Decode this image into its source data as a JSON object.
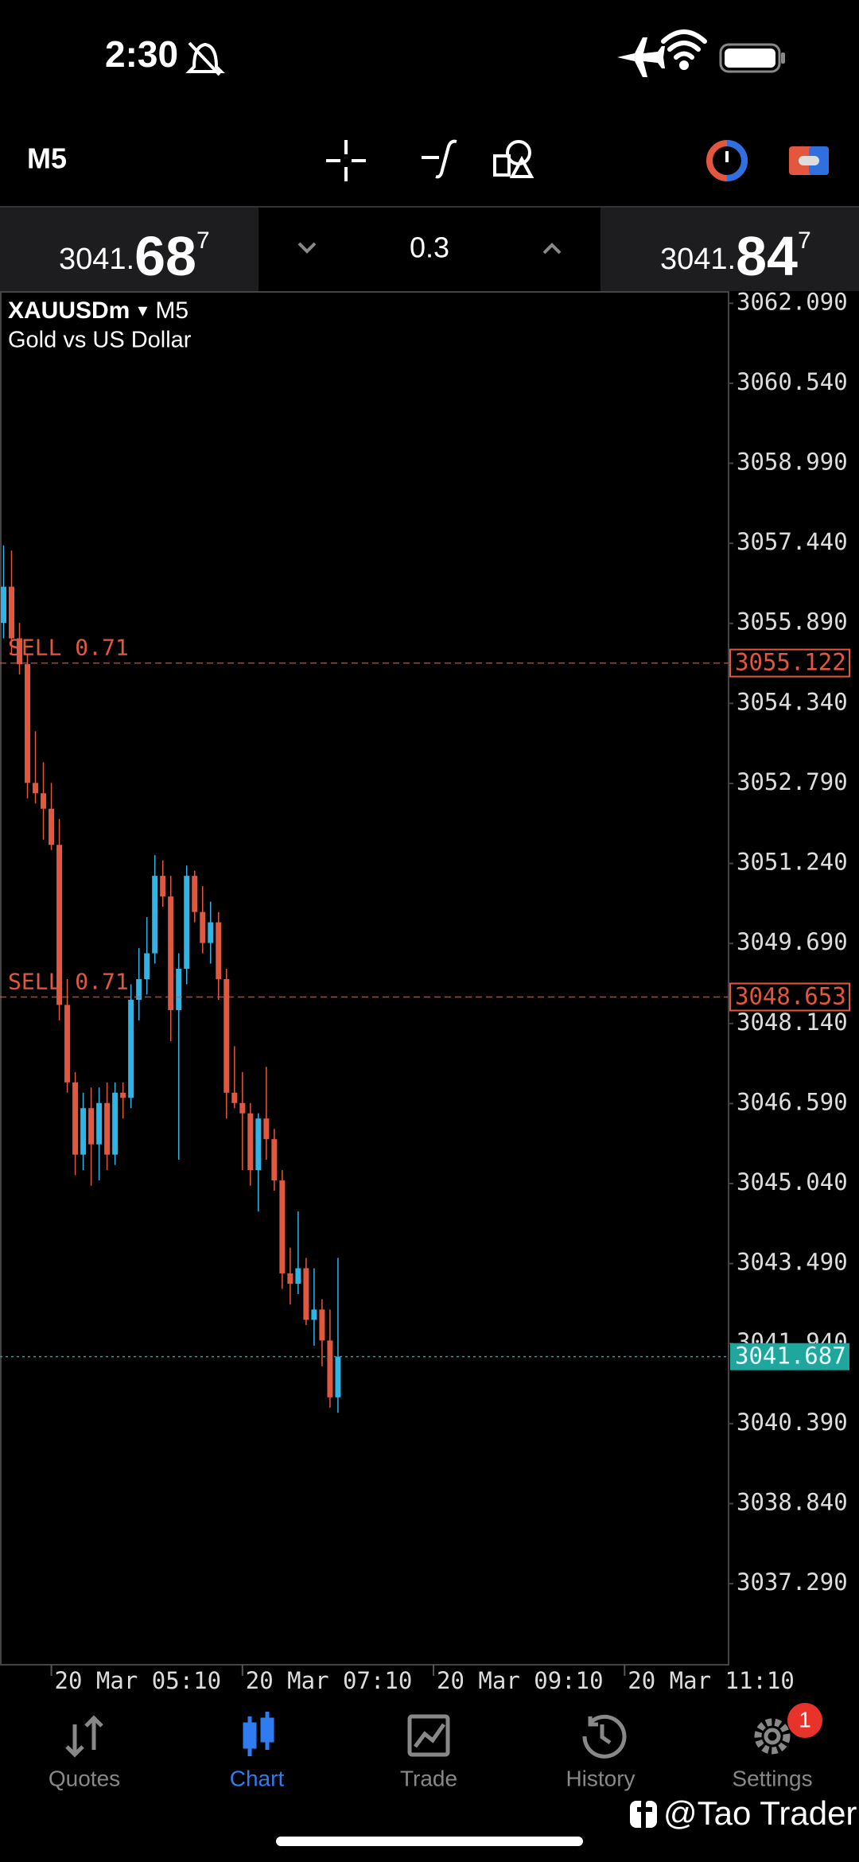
{
  "status_bar": {
    "time": "2:30"
  },
  "toolbar": {
    "timeframe": "M5"
  },
  "quotes": {
    "bid": {
      "main": "3041.",
      "big": "68",
      "sup": "7"
    },
    "volume": "0.3",
    "ask": {
      "main": "3041.",
      "big": "84",
      "sup": "7"
    }
  },
  "chart_data": {
    "type": "candlestick",
    "symbol": "XAUUSDm",
    "dropdown": "▾",
    "timeframe": "M5",
    "description": "Gold vs US Dollar",
    "up_color": "#2fb4e8",
    "down_color": "#e2573e",
    "categories": [
      null,
      null,
      null,
      null,
      null,
      null,
      "20 Mar 05:10",
      null,
      null,
      null,
      null,
      null,
      null,
      null,
      null,
      null,
      null,
      null,
      null,
      null,
      null,
      null,
      null,
      null,
      null,
      null,
      null,
      null,
      null,
      null,
      "20 Mar 07:10",
      null,
      null,
      null,
      null,
      null,
      null,
      null,
      null,
      null,
      null,
      null,
      null,
      null,
      null,
      null,
      null,
      null,
      null,
      null,
      null,
      null,
      null,
      null,
      "20 Mar 09:10",
      null,
      null,
      null,
      null,
      null,
      null,
      null,
      null,
      null,
      null,
      null,
      null,
      null,
      null,
      null,
      null,
      null,
      null,
      null,
      null,
      null,
      null,
      null,
      "20 Mar 11:10"
    ],
    "open": [
      3055.9,
      3056.6,
      3055.6,
      3055.1,
      3052.8,
      3052.6,
      3052.3,
      3051.6,
      3048.5,
      3047.0,
      3045.6,
      3046.5,
      3045.8,
      3046.6,
      3045.6,
      3046.8,
      3046.7,
      3048.6,
      3049.0,
      3049.5,
      3051.0,
      3050.6,
      3048.4,
      3049.2,
      3051.0,
      3050.3,
      3049.7,
      3050.1,
      3049.0,
      3046.8,
      3046.6,
      3046.4,
      3045.3,
      3046.3,
      3045.9,
      3045.1,
      3043.3,
      3043.1,
      3043.4,
      3042.4,
      3042.6,
      3042.0,
      3040.9,
      null,
      null,
      null,
      null,
      null,
      null,
      null,
      null,
      null,
      null,
      null,
      null,
      null,
      null,
      null,
      null,
      null,
      null,
      null,
      null,
      null,
      null,
      null,
      null,
      null,
      null,
      null,
      null,
      null,
      null,
      null,
      null,
      null,
      null,
      null,
      null
    ],
    "high": [
      3057.4,
      3057.3,
      3055.9,
      3055.3,
      3053.8,
      3053.2,
      3052.8,
      3052.1,
      3049.0,
      3047.2,
      3046.8,
      3046.9,
      3046.9,
      3047.0,
      3047.0,
      3047.0,
      3048.9,
      3049.6,
      3050.2,
      3051.4,
      3051.3,
      3051.0,
      3049.5,
      3051.2,
      3051.1,
      3050.8,
      3050.5,
      3050.3,
      3049.2,
      3047.7,
      3047.2,
      3046.6,
      3046.4,
      3047.3,
      3046.1,
      3045.3,
      3043.8,
      3044.5,
      3043.6,
      3043.4,
      3042.8,
      3042.6,
      3043.6,
      null,
      null,
      null,
      null,
      null,
      null,
      null,
      null,
      null,
      null,
      null,
      null,
      null,
      null,
      null,
      null,
      null,
      null,
      null,
      null,
      null,
      null,
      null,
      null,
      null,
      null,
      null,
      null,
      null,
      null,
      null,
      null,
      null,
      null,
      null,
      null
    ],
    "low": [
      3055.6,
      3055.3,
      3054.9,
      3052.5,
      3052.4,
      3051.7,
      3051.5,
      3048.2,
      3046.8,
      3045.2,
      3045.3,
      3045.0,
      3045.1,
      3045.3,
      3045.4,
      3046.3,
      3046.5,
      3048.2,
      3048.7,
      3049.3,
      3050.4,
      3047.8,
      3045.5,
      3048.9,
      3050.1,
      3049.5,
      3049.3,
      3048.6,
      3046.3,
      3046.5,
      3045.3,
      3045.0,
      3044.5,
      3045.5,
      3044.9,
      3043.0,
      3042.7,
      3042.9,
      3042.3,
      3041.9,
      3041.5,
      3040.7,
      3040.6,
      null,
      null,
      null,
      null,
      null,
      null,
      null,
      null,
      null,
      null,
      null,
      null,
      null,
      null,
      null,
      null,
      null,
      null,
      null,
      null,
      null,
      null,
      null,
      null,
      null,
      null,
      null,
      null,
      null,
      null,
      null,
      null,
      null,
      null,
      null,
      null
    ],
    "close": [
      3056.6,
      3055.6,
      3055.1,
      3052.8,
      3052.6,
      3052.3,
      3051.6,
      3048.5,
      3047.0,
      3045.6,
      3046.5,
      3045.8,
      3046.6,
      3045.6,
      3046.8,
      3046.7,
      3048.6,
      3049.0,
      3049.5,
      3051.0,
      3050.6,
      3048.4,
      3049.2,
      3051.0,
      3050.3,
      3049.7,
      3050.1,
      3049.0,
      3046.8,
      3046.6,
      3046.4,
      3045.3,
      3046.3,
      3045.9,
      3045.1,
      3043.3,
      3043.1,
      3043.4,
      3042.4,
      3042.6,
      3042.0,
      3040.9,
      3041.687,
      null,
      null,
      null,
      null,
      null,
      null,
      null,
      null,
      null,
      null,
      null,
      null,
      null,
      null,
      null,
      null,
      null,
      null,
      null,
      null,
      null,
      null,
      null,
      null,
      null,
      null,
      null,
      null,
      null,
      null,
      null,
      null,
      null,
      null,
      null,
      null
    ],
    "ylim": [
      3035.72,
      3062.31
    ],
    "yticks": [
      {
        "value": 3062.09,
        "label": "3062.090"
      },
      {
        "value": 3060.54,
        "label": "3060.540"
      },
      {
        "value": 3058.99,
        "label": "3058.990"
      },
      {
        "value": 3057.44,
        "label": "3057.440"
      },
      {
        "value": 3055.89,
        "label": "3055.890"
      },
      {
        "value": 3054.34,
        "label": "3054.340"
      },
      {
        "value": 3052.79,
        "label": "3052.790"
      },
      {
        "value": 3051.24,
        "label": "3051.240"
      },
      {
        "value": 3049.69,
        "label": "3049.690"
      },
      {
        "value": 3048.14,
        "label": "3048.140"
      },
      {
        "value": 3046.59,
        "label": "3046.590"
      },
      {
        "value": 3045.04,
        "label": "3045.040"
      },
      {
        "value": 3043.49,
        "label": "3043.490"
      },
      {
        "value": 3041.94,
        "label": "3041.940"
      },
      {
        "value": 3040.39,
        "label": "3040.390"
      },
      {
        "value": 3038.84,
        "label": "3038.840"
      },
      {
        "value": 3037.29,
        "label": "3037.290"
      }
    ],
    "orders": [
      {
        "label": "SELL 0.71",
        "price": 3055.122,
        "color": "#e2573e"
      },
      {
        "label": "SELL 0.71",
        "price": 3048.653,
        "color": "#e2573e"
      }
    ],
    "last_price": 3041.687,
    "last_color": "#1fa79e"
  },
  "nav": [
    {
      "label": "Quotes"
    },
    {
      "label": "Chart",
      "active": true
    },
    {
      "label": "Trade"
    },
    {
      "label": "History"
    },
    {
      "label": "Settings",
      "badge": "1"
    }
  ],
  "watermark": "@Tao Trader"
}
